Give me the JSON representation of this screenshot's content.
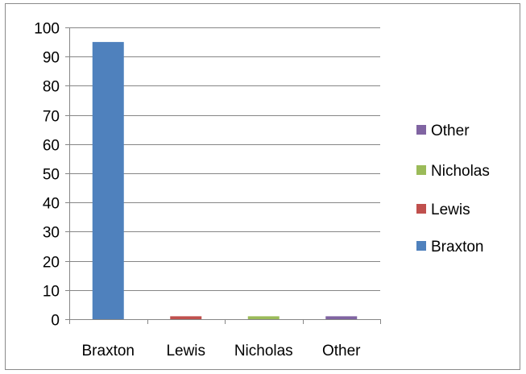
{
  "chart_data": {
    "type": "bar",
    "categories": [
      "Braxton",
      "Lewis",
      "Nicholas",
      "Other"
    ],
    "values": [
      95,
      1,
      1,
      1
    ],
    "colors": [
      "#4f81bd",
      "#c0504d",
      "#9bbb59",
      "#8064a2"
    ],
    "ylim": [
      0,
      100
    ],
    "yticks": [
      "0",
      "10",
      "20",
      "30",
      "40",
      "50",
      "60",
      "70",
      "80",
      "90",
      "100"
    ],
    "grid": true,
    "legend_position": "right",
    "legend": [
      {
        "label": "Other",
        "color": "#8064a2"
      },
      {
        "label": "Nicholas",
        "color": "#9bbb59"
      },
      {
        "label": "Lewis",
        "color": "#c0504d"
      },
      {
        "label": "Braxton",
        "color": "#4f81bd"
      }
    ]
  }
}
